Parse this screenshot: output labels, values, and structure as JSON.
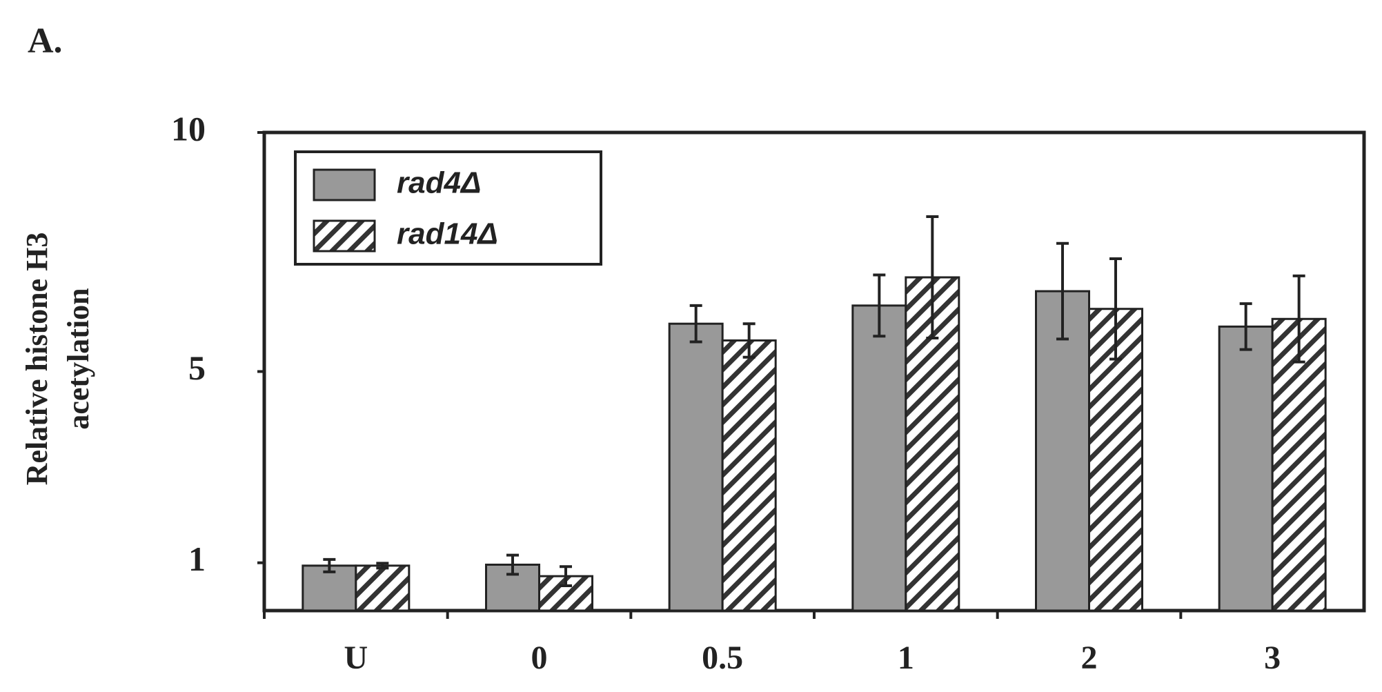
{
  "chart_data": {
    "type": "bar",
    "panel_label": "A.",
    "y_label": [
      "Relative histone H3",
      "acetylation"
    ],
    "categories": [
      "U",
      "0",
      "0.5",
      "1",
      "2",
      "3"
    ],
    "series": [
      {
        "name": "rad4Δ",
        "color": "#999999",
        "hatch": false,
        "values": [
          0.94,
          0.96,
          6.0,
          6.38,
          6.68,
          5.94
        ],
        "errors": [
          0.13,
          0.2,
          0.38,
          0.64,
          1.0,
          0.48
        ]
      },
      {
        "name": "rad14Δ",
        "color": "#ffffff",
        "hatch": true,
        "values": [
          0.94,
          0.72,
          5.65,
          6.97,
          6.31,
          6.1
        ],
        "errors": [
          0.05,
          0.2,
          0.35,
          1.27,
          1.05,
          0.9
        ]
      }
    ],
    "ylim": [
      0,
      10
    ],
    "yticks": [
      1,
      5,
      10
    ],
    "grid": false,
    "legend": "upper left"
  }
}
